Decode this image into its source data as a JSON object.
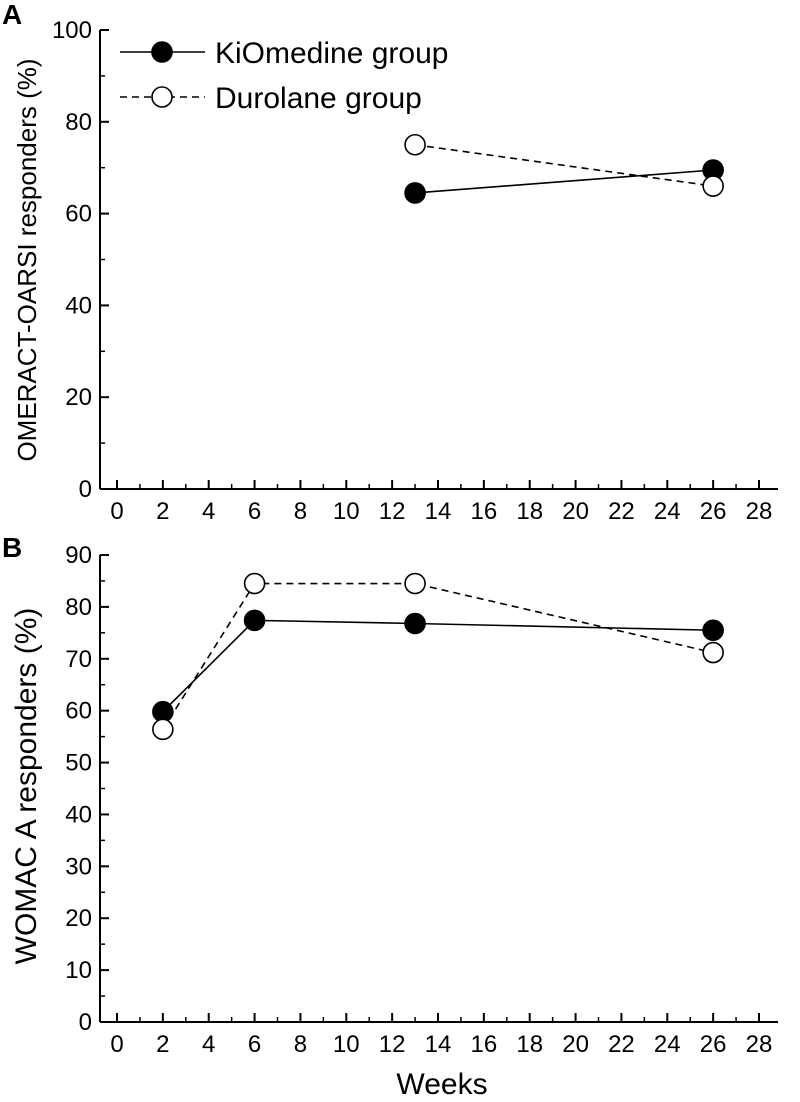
{
  "chart_data": [
    {
      "panel": "A",
      "type": "line",
      "ylabel": "OMERACT-OARSI responders (%)",
      "xlabel": "",
      "xlim": [
        0,
        28
      ],
      "ylim": [
        0,
        100
      ],
      "xticks": [
        0,
        2,
        4,
        6,
        8,
        10,
        12,
        14,
        16,
        18,
        20,
        22,
        24,
        26,
        28
      ],
      "yticks": [
        0,
        20,
        40,
        60,
        80,
        100
      ],
      "legend": "top-left",
      "grid": false,
      "series": [
        {
          "name": "KiOmedine group",
          "marker": "filled",
          "dash": "solid",
          "x": [
            13,
            26
          ],
          "y": [
            64.5,
            69.5
          ]
        },
        {
          "name": "Durolane group",
          "marker": "open",
          "dash": "dashed",
          "x": [
            13,
            26
          ],
          "y": [
            75,
            66
          ]
        }
      ]
    },
    {
      "panel": "B",
      "type": "line",
      "ylabel": "WOMAC A responders (%)",
      "xlabel": "Weeks",
      "xlim": [
        0,
        28
      ],
      "ylim": [
        0,
        90
      ],
      "xticks": [
        0,
        2,
        4,
        6,
        8,
        10,
        12,
        14,
        16,
        18,
        20,
        22,
        24,
        26,
        28
      ],
      "yticks": [
        0,
        10,
        20,
        30,
        40,
        50,
        60,
        70,
        80,
        90
      ],
      "grid": false,
      "series": [
        {
          "name": "KiOmedine group",
          "marker": "filled",
          "dash": "solid",
          "x": [
            2,
            6,
            13,
            26
          ],
          "y": [
            59.8,
            77.4,
            76.8,
            75.5
          ]
        },
        {
          "name": "Durolane group",
          "marker": "open",
          "dash": "dashed",
          "x": [
            2,
            6,
            13,
            26
          ],
          "y": [
            56.4,
            84.5,
            84.5,
            71.2
          ]
        }
      ]
    }
  ]
}
